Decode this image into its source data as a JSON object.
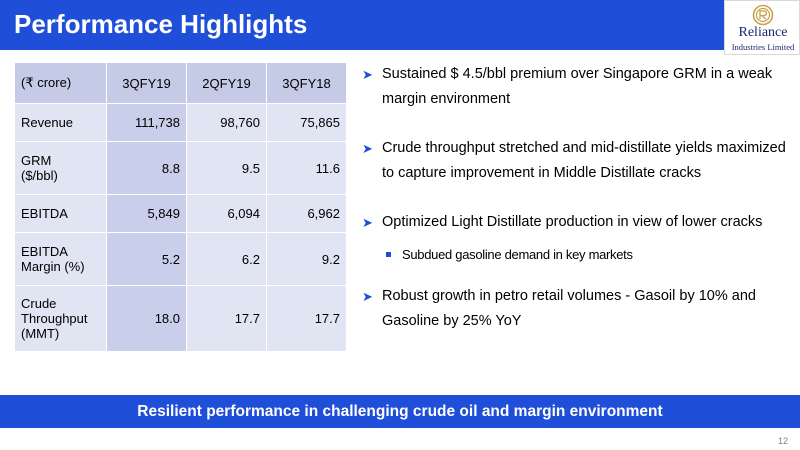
{
  "header": {
    "title": "Performance Highlights"
  },
  "logo": {
    "name": "Reliance",
    "subtitle": "Industries Limited"
  },
  "table": {
    "columns": [
      "(₹ crore)",
      "3QFY19",
      "2QFY19",
      "3QFY18"
    ],
    "rows": [
      {
        "label": "Revenue",
        "values": [
          "111,738",
          "98,760",
          "75,865"
        ]
      },
      {
        "label": "GRM\n($/bbl)",
        "values": [
          "8.8",
          "9.5",
          "11.6"
        ]
      },
      {
        "label": "EBITDA",
        "values": [
          "5,849",
          "6,094",
          "6,962"
        ]
      },
      {
        "label": "EBITDA\nMargin (%)",
        "values": [
          "5.2",
          "6.2",
          "9.2"
        ]
      },
      {
        "label": "Crude\nThroughput\n(MMT)",
        "values": [
          "18.0",
          "17.7",
          "17.7"
        ]
      }
    ]
  },
  "bullets": [
    {
      "text": "Sustained $ 4.5/bbl premium over Singapore GRM in a weak margin environment"
    },
    {
      "text": "Crude throughput stretched and mid-distillate yields maximized to capture improvement in Middle Distillate cracks"
    },
    {
      "text": "Optimized Light Distillate production in view of lower cracks"
    },
    {
      "text": "Robust growth in petro retail volumes - Gasoil by 10% and Gasoline by 25% YoY"
    }
  ],
  "sub_bullets": [
    {
      "text": "Subdued gasoline demand in key markets"
    }
  ],
  "footer": {
    "text": "Resilient performance in challenging crude oil and margin environment"
  },
  "page_number": "12",
  "colors": {
    "primary": "#1f4fd8",
    "table_header": "#c5cbe6",
    "table_cell": "#e1e4f2"
  }
}
